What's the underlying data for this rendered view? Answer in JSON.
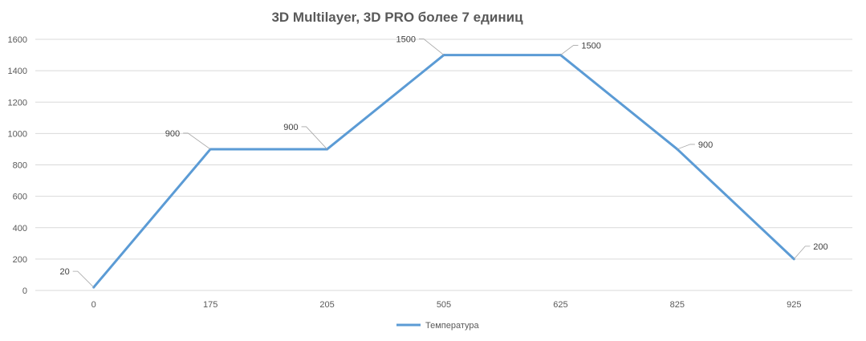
{
  "chart_data": {
    "type": "line",
    "title": "3D Multilayer, 3D PRO более 7 единиц",
    "categories": [
      "0",
      "175",
      "205",
      "505",
      "625",
      "825",
      "925"
    ],
    "series": [
      {
        "name": "Температура",
        "values": [
          20,
          900,
          900,
          1500,
          1500,
          900,
          200
        ],
        "color": "#5b9bd5"
      }
    ],
    "data_labels": [
      "20",
      "900",
      "900",
      "1500",
      "1500",
      "900",
      "200"
    ],
    "ylim": [
      0,
      1600
    ],
    "yticks": [
      "0",
      "200",
      "400",
      "600",
      "800",
      "1000",
      "1200",
      "1400",
      "1600"
    ],
    "grid": true,
    "legend": "bottom"
  }
}
